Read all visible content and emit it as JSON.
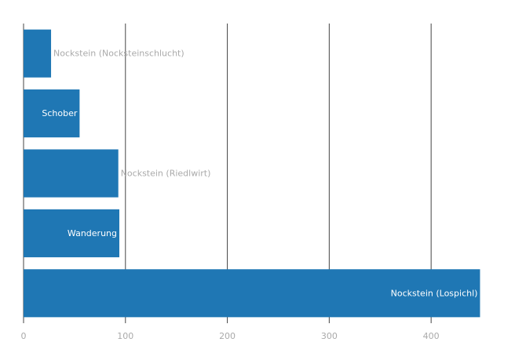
{
  "chart_data": {
    "type": "bar",
    "orientation": "horizontal",
    "categories": [
      "Nockstein (Nocksteinschlucht)",
      "Schober",
      "Nockstein (Riedlwirt)",
      "Wanderung",
      "Nockstein (Lospichl)"
    ],
    "values": [
      27,
      55,
      93,
      94,
      448
    ],
    "title": "",
    "xlabel": "",
    "ylabel": "",
    "xlim": [
      0,
      470
    ],
    "x_ticks": [
      0,
      100,
      200,
      300,
      400
    ],
    "grid": true,
    "legend": "none",
    "colors": {
      "bar": "#1f77b4",
      "grid": "#444444",
      "tick_text": "#aaaaaa",
      "label_inside": "#ffffff",
      "label_outside": "#aaaaaa"
    }
  }
}
